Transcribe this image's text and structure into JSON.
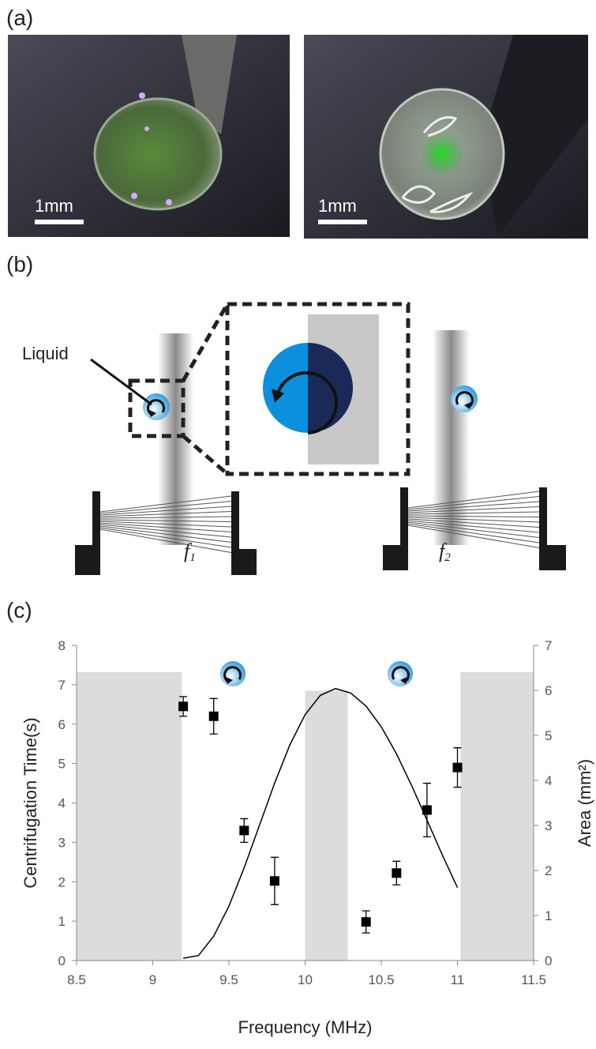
{
  "panel_labels": [
    "(a)",
    "(b)",
    "(c)"
  ],
  "photos": {
    "scale_labels": [
      "1mm",
      "1mm"
    ]
  },
  "diagram": {
    "liquid_label": "Liquid",
    "frequency_labels": [
      {
        "symbol": "f",
        "sub": "1"
      },
      {
        "symbol": "f",
        "sub": "2"
      }
    ]
  },
  "chart_data": {
    "type": "scatter",
    "xlabel": "Frequency (MHz)",
    "ylabel": "Centrifugation Time(s)",
    "y2label": "Area (mm²)",
    "xlim": [
      8.5,
      11.5
    ],
    "xticks": [
      8.5,
      9,
      9.5,
      10,
      10.5,
      11,
      11.5
    ],
    "ylim": [
      0,
      8
    ],
    "yticks": [
      0,
      1,
      2,
      3,
      4,
      5,
      6,
      7,
      8
    ],
    "y2lim": [
      0,
      7
    ],
    "y2ticks": [
      0,
      1,
      2,
      3,
      4,
      5,
      6,
      7
    ],
    "shaded_regions": {
      "color": "#dcdcdc",
      "x_start": [
        8.5,
        10.0,
        11.02
      ],
      "x_end": [
        9.19,
        10.28,
        11.5
      ],
      "top": [
        7.32,
        6.85,
        7.32
      ]
    },
    "points": {
      "color": "#000000",
      "x": [
        9.2,
        9.4,
        9.6,
        9.8,
        10.4,
        10.6,
        10.8,
        11.0
      ],
      "values": [
        6.45,
        6.2,
        3.3,
        2.02,
        0.98,
        2.22,
        3.82,
        4.9
      ],
      "errors": [
        0.25,
        0.45,
        0.3,
        0.6,
        0.28,
        0.3,
        0.68,
        0.5
      ]
    },
    "curve": {
      "color": "#000000",
      "axis": "y2",
      "x": [
        9.2,
        9.3,
        9.4,
        9.5,
        9.6,
        9.7,
        9.8,
        9.9,
        10.0,
        10.1,
        10.2,
        10.3,
        10.4,
        10.5,
        10.6,
        10.7,
        10.8,
        10.9,
        11.0
      ],
      "values": [
        0.05,
        0.11,
        0.54,
        1.21,
        2.06,
        3.0,
        3.94,
        4.79,
        5.46,
        5.89,
        6.04,
        5.94,
        5.65,
        5.19,
        4.59,
        3.88,
        3.12,
        2.35,
        1.62
      ]
    }
  }
}
